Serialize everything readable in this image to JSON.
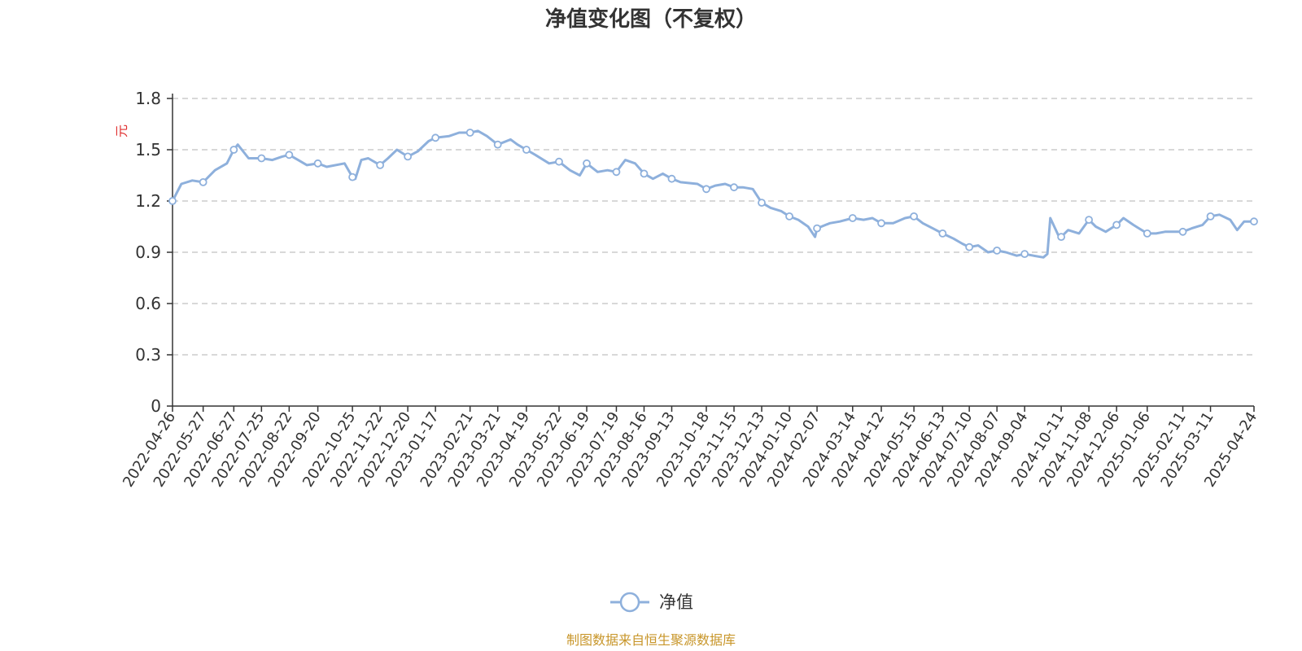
{
  "chart_data": {
    "type": "line",
    "title": "净值变化图（不复权）",
    "ylabel": "元",
    "xlabel": "",
    "ylim": [
      0,
      1.8
    ],
    "yticks": [
      "0",
      "0.3",
      "0.6",
      "0.9",
      "1.2",
      "1.5",
      "1.8"
    ],
    "grid": true,
    "legend_position": "bottom-center",
    "line_color": "#8eb0dc",
    "x_tick_labels": [
      "2022-04-26",
      "2022-05-27",
      "2022-06-27",
      "2022-07-25",
      "2022-08-22",
      "2022-09-20",
      "2022-10-25",
      "2022-11-22",
      "2022-12-20",
      "2023-01-17",
      "2023-02-21",
      "2023-03-21",
      "2023-04-19",
      "2023-05-22",
      "2023-06-19",
      "2023-07-19",
      "2023-08-16",
      "2023-09-13",
      "2023-10-18",
      "2023-11-15",
      "2023-12-13",
      "2024-01-10",
      "2024-02-07",
      "2024-03-14",
      "2024-04-12",
      "2024-05-15",
      "2024-06-13",
      "2024-07-10",
      "2024-08-07",
      "2024-09-04",
      "2024-10-11",
      "2024-11-08",
      "2024-12-06",
      "2025-01-06",
      "2025-02-11",
      "2025-03-11",
      "2025-04-24"
    ],
    "series": [
      {
        "name": "净值",
        "x": [
          "2022-04-26",
          "2022-05-05",
          "2022-05-16",
          "2022-05-27",
          "2022-06-08",
          "2022-06-20",
          "2022-06-27",
          "2022-07-01",
          "2022-07-12",
          "2022-07-25",
          "2022-08-05",
          "2022-08-15",
          "2022-08-22",
          "2022-08-31",
          "2022-09-09",
          "2022-09-20",
          "2022-09-29",
          "2022-10-17",
          "2022-10-25",
          "2022-10-28",
          "2022-11-03",
          "2022-11-10",
          "2022-11-22",
          "2022-11-30",
          "2022-12-09",
          "2022-12-20",
          "2022-12-30",
          "2023-01-10",
          "2023-01-17",
          "2023-01-31",
          "2023-02-10",
          "2023-02-21",
          "2023-03-01",
          "2023-03-10",
          "2023-03-21",
          "2023-04-03",
          "2023-04-10",
          "2023-04-19",
          "2023-04-28",
          "2023-05-12",
          "2023-05-22",
          "2023-06-02",
          "2023-06-12",
          "2023-06-19",
          "2023-06-30",
          "2023-07-10",
          "2023-07-19",
          "2023-07-28",
          "2023-08-07",
          "2023-08-16",
          "2023-08-25",
          "2023-09-04",
          "2023-09-13",
          "2023-09-22",
          "2023-10-09",
          "2023-10-18",
          "2023-10-27",
          "2023-11-06",
          "2023-11-15",
          "2023-11-24",
          "2023-12-04",
          "2023-12-13",
          "2023-12-22",
          "2024-01-02",
          "2024-01-10",
          "2024-01-19",
          "2024-01-29",
          "2024-02-05",
          "2024-02-07",
          "2024-02-20",
          "2024-03-01",
          "2024-03-14",
          "2024-03-25",
          "2024-04-03",
          "2024-04-12",
          "2024-04-24",
          "2024-05-06",
          "2024-05-15",
          "2024-05-24",
          "2024-06-03",
          "2024-06-13",
          "2024-06-24",
          "2024-07-03",
          "2024-07-10",
          "2024-07-19",
          "2024-07-29",
          "2024-08-07",
          "2024-08-16",
          "2024-08-27",
          "2024-09-04",
          "2024-09-13",
          "2024-09-23",
          "2024-09-27",
          "2024-09-30",
          "2024-10-08",
          "2024-10-11",
          "2024-10-18",
          "2024-10-29",
          "2024-11-08",
          "2024-11-15",
          "2024-11-25",
          "2024-12-06",
          "2024-12-13",
          "2024-12-23",
          "2025-01-06",
          "2025-01-15",
          "2025-01-24",
          "2025-02-11",
          "2025-02-20",
          "2025-03-03",
          "2025-03-11",
          "2025-03-20",
          "2025-03-31",
          "2025-04-07",
          "2025-04-14",
          "2025-04-24"
        ],
        "values": [
          1.2,
          1.3,
          1.32,
          1.31,
          1.38,
          1.42,
          1.5,
          1.53,
          1.45,
          1.45,
          1.44,
          1.46,
          1.47,
          1.44,
          1.41,
          1.42,
          1.4,
          1.42,
          1.34,
          1.33,
          1.44,
          1.45,
          1.41,
          1.45,
          1.5,
          1.46,
          1.49,
          1.55,
          1.57,
          1.58,
          1.6,
          1.6,
          1.61,
          1.58,
          1.53,
          1.56,
          1.53,
          1.5,
          1.47,
          1.42,
          1.43,
          1.38,
          1.35,
          1.42,
          1.37,
          1.38,
          1.37,
          1.44,
          1.42,
          1.36,
          1.33,
          1.36,
          1.33,
          1.31,
          1.3,
          1.27,
          1.29,
          1.3,
          1.28,
          1.28,
          1.27,
          1.19,
          1.16,
          1.14,
          1.11,
          1.09,
          1.05,
          0.99,
          1.04,
          1.07,
          1.08,
          1.1,
          1.09,
          1.1,
          1.07,
          1.07,
          1.1,
          1.11,
          1.07,
          1.04,
          1.01,
          0.98,
          0.95,
          0.93,
          0.94,
          0.9,
          0.91,
          0.9,
          0.88,
          0.89,
          0.88,
          0.87,
          0.89,
          1.1,
          1.0,
          0.99,
          1.03,
          1.01,
          1.09,
          1.05,
          1.02,
          1.06,
          1.1,
          1.06,
          1.01,
          1.01,
          1.02,
          1.02,
          1.04,
          1.06,
          1.11,
          1.12,
          1.09,
          1.03,
          1.08,
          1.08
        ]
      }
    ]
  },
  "legend": {
    "label": "净值"
  },
  "source": "制图数据来自恒生聚源数据库"
}
